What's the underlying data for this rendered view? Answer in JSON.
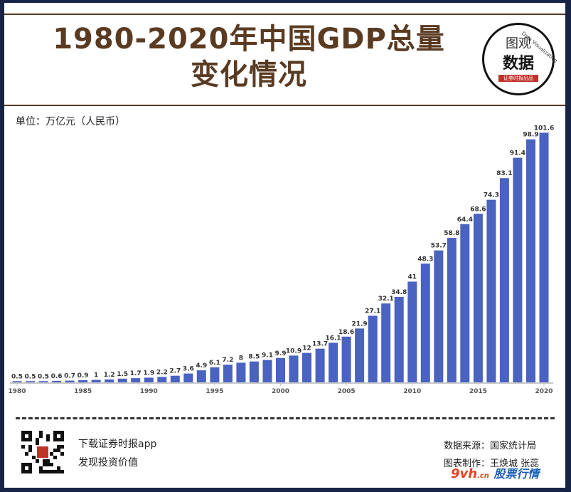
{
  "title_lines": [
    "1980-2020年中国GDP总量",
    "变化情况"
  ],
  "logo": {
    "line1": "图观",
    "line2": "数据",
    "tag": "证券时报出品",
    "arc": "Data Visualization"
  },
  "unit_label": "单位：万亿元（人民币）",
  "chart_data": {
    "type": "bar",
    "title": "1980-2020年中国GDP总量变化情况",
    "ylabel": "单位：万亿元（人民币）",
    "xlabel": "",
    "categories": [
      "1980",
      "1981",
      "1982",
      "1983",
      "1984",
      "1985",
      "1986",
      "1987",
      "1988",
      "1989",
      "1990",
      "1991",
      "1992",
      "1993",
      "1994",
      "1995",
      "1996",
      "1997",
      "1998",
      "1999",
      "2000",
      "2001",
      "2002",
      "2003",
      "2004",
      "2005",
      "2006",
      "2007",
      "2008",
      "2009",
      "2010",
      "2011",
      "2012",
      "2013",
      "2014",
      "2015",
      "2016",
      "2017",
      "2018",
      "2019",
      "2020"
    ],
    "values": [
      0.5,
      0.5,
      0.5,
      0.6,
      0.7,
      0.9,
      1,
      1.2,
      1.5,
      1.7,
      1.9,
      2.2,
      2.7,
      3.6,
      4.9,
      6.1,
      7.2,
      8,
      8.5,
      9.1,
      9.9,
      10.9,
      12,
      13.7,
      16.1,
      18.6,
      21.9,
      27.1,
      32.1,
      34.8,
      41,
      48.3,
      53.7,
      58.8,
      64.4,
      68.6,
      74.3,
      83.1,
      91.4,
      98.9,
      101.6
    ],
    "labels": [
      "0.5",
      "0.5",
      "0.5",
      "0.6",
      "0.7",
      "0.9",
      "1",
      "1.2",
      "1.5",
      "1.7",
      "1.9",
      "2.2",
      "2.7",
      "3.6",
      "4.9",
      "6.1",
      "7.2",
      "8",
      "8.5",
      "9.1",
      "9.9",
      "10.9",
      "12",
      "13.7",
      "16.1",
      "18.6",
      "21.9",
      "27.1",
      "32.1",
      "34.8",
      "41",
      "48.3",
      "53.7",
      "58.8",
      "64.4",
      "68.6",
      "74.3",
      "83.1",
      "91.4",
      "98.9",
      "101.6"
    ],
    "x_tick_labels": [
      "1980",
      "1985",
      "1990",
      "1995",
      "2000",
      "2005",
      "2010",
      "2015",
      "2020"
    ],
    "ylim": [
      0,
      102
    ],
    "grid": false,
    "bar_color": "#4a62c0"
  },
  "footer": {
    "app_line1": "下载证券时报app",
    "app_line2": "发现投资价值",
    "source": "数据来源：国家统计局",
    "credit": "图表制作：王焕城 张蕊"
  },
  "watermark": {
    "brand": "9vh",
    "domain": ".cn",
    "name": "股票行情"
  },
  "colors": {
    "background": "#172447",
    "title": "#5a3b22",
    "bars": "#4a62c0",
    "seal": "#c0332b"
  }
}
